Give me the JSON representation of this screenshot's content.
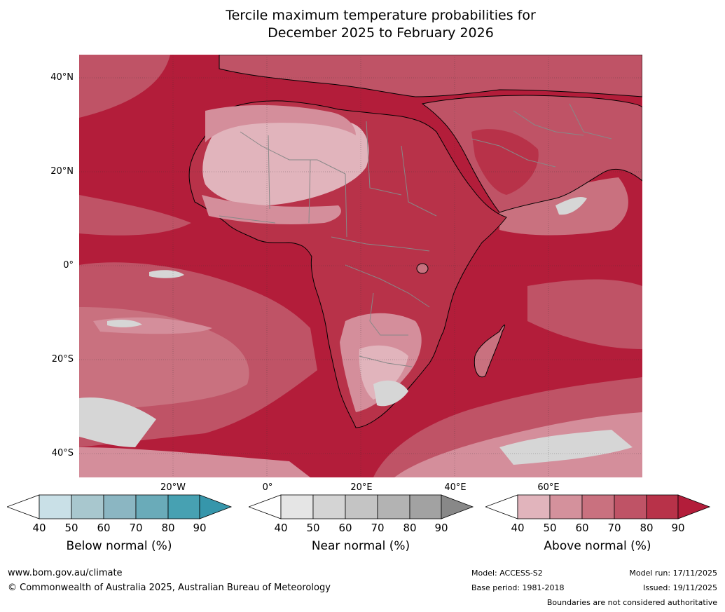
{
  "title": {
    "line1": "Tercile maximum temperature probabilities for",
    "line2": "December 2025 to February 2026"
  },
  "map": {
    "lat_labels": [
      "40°N",
      "20°N",
      "0°",
      "20°S",
      "40°S"
    ],
    "lon_labels": [
      "20°W",
      "0°",
      "20°E",
      "40°E",
      "60°E"
    ],
    "colors": {
      "ocean_base": "#b31d3a",
      "above_40": "#e1b4bc",
      "above_50": "#d48e9b",
      "above_60": "#c9717f",
      "above_70": "#bf5366",
      "above_80": "#b83249",
      "near_50": "#d6d6d6",
      "below_60": "#8db5c2",
      "land_border": "#888888",
      "coastline": "#000000"
    }
  },
  "legends": [
    {
      "id": "below",
      "title": "Below normal (%)",
      "ticks": [
        "40",
        "50",
        "60",
        "70",
        "80",
        "90"
      ],
      "colors": [
        "#ffffff",
        "#c9e0e7",
        "#a8c7ce",
        "#8bb6c2",
        "#6aabb9",
        "#47a1b2",
        "#3696ab"
      ]
    },
    {
      "id": "near",
      "title": "Near normal (%)",
      "ticks": [
        "40",
        "50",
        "60",
        "70",
        "80",
        "90"
      ],
      "colors": [
        "#ffffff",
        "#e5e5e5",
        "#d4d4d4",
        "#c4c4c4",
        "#b3b3b3",
        "#a2a2a2",
        "#888888"
      ]
    },
    {
      "id": "above",
      "title": "Above normal (%)",
      "ticks": [
        "40",
        "50",
        "60",
        "70",
        "80",
        "90"
      ],
      "colors": [
        "#ffffff",
        "#e1b4bc",
        "#d4919c",
        "#c9717f",
        "#bf5366",
        "#b83249",
        "#b31d3a"
      ]
    }
  ],
  "footer": {
    "website": "www.bom.gov.au/climate",
    "copyright": "© Commonwealth of Australia 2025, Australian Bureau of Meteorology",
    "model": "Model: ACCESS-S2",
    "base_period": "Base period: 1981-2018",
    "model_run": "Model run: 17/11/2025",
    "issued": "Issued: 19/11/2025",
    "disclaimer": "Boundaries are not considered authoritative"
  }
}
